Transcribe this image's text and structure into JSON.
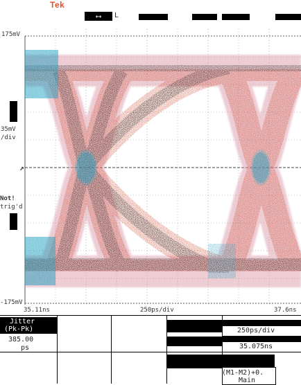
{
  "brand": "Tek",
  "top_bar": {
    "arrow_symbol": "⟷",
    "channel_indicator": "L"
  },
  "scale": {
    "top_voltage": "175mV",
    "bottom_voltage": "-175mV",
    "vertical_div": "35mV",
    "vertical_div_unit": "/div",
    "left_status_line1": "Not!",
    "left_status_line2": "trig'd"
  },
  "time_axis": {
    "left_time": "35.11ns",
    "center_label": "250ps/div",
    "right_time": "37.6ns"
  },
  "readouts": {
    "measurement_title": "Jitter",
    "measurement_subtitle": "(Pk-Pk)",
    "measurement_value": "385.00",
    "measurement_unit": "ps",
    "timebase_value": "250ps/div",
    "position_value": "35.075ns",
    "math_label": "(M1-M2)+0.",
    "math_source": "Main"
  },
  "colors": {
    "trace_red": "#c83a1e",
    "trace_cyan": "#1a9fbf",
    "trace_black": "#1a1a1a",
    "trace_pink": "#d98fa0",
    "grid": "#8a8a8a",
    "brand": "#e0502a"
  }
}
